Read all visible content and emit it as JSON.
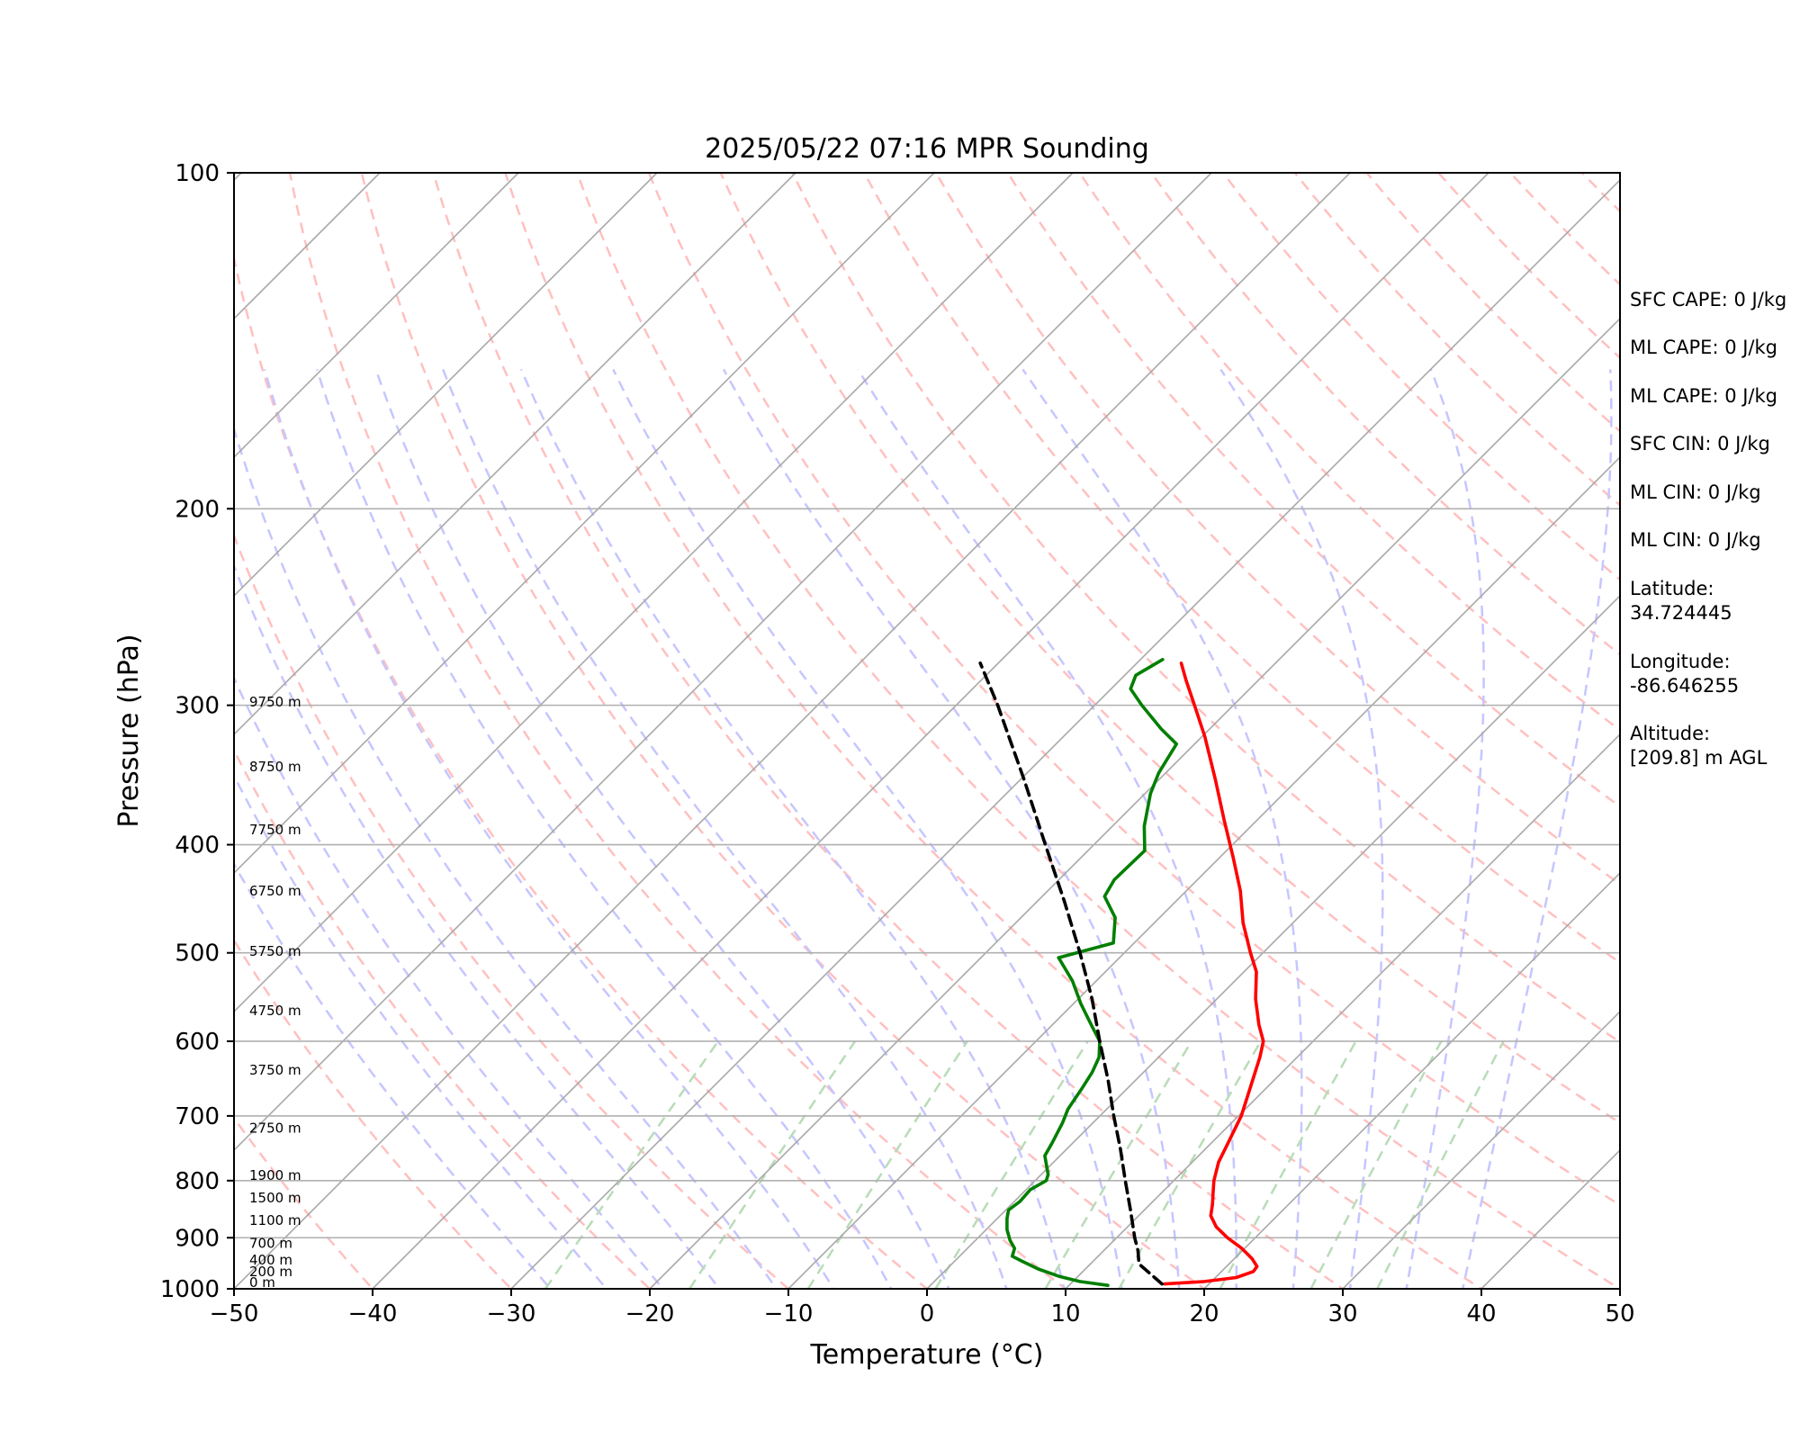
{
  "chart_data": {
    "type": "line",
    "title": "2025/05/22 07:16 MPR Sounding",
    "xlabel": "Temperature (°C)",
    "ylabel": "Pressure (hPa)",
    "xlim": [
      -50,
      50
    ],
    "ylim": [
      1000,
      100
    ],
    "y_scale": "log",
    "skew": true,
    "x_ticks": [
      "−50",
      "−40",
      "−30",
      "−20",
      "−10",
      "0",
      "10",
      "20",
      "30",
      "40",
      "50"
    ],
    "x_tick_values": [
      -50,
      -40,
      -30,
      -20,
      -10,
      0,
      10,
      20,
      30,
      40,
      50
    ],
    "y_ticks": [
      "100",
      "200",
      "300",
      "400",
      "500",
      "600",
      "700",
      "800",
      "900",
      "1000"
    ],
    "y_tick_values": [
      100,
      200,
      300,
      400,
      500,
      600,
      700,
      800,
      900,
      1000
    ],
    "grid": true,
    "height_labels": [
      {
        "text": "0 m",
        "p": 1000
      },
      {
        "text": "200 m",
        "p": 978
      },
      {
        "text": "400 m",
        "p": 955
      },
      {
        "text": "700 m",
        "p": 922
      },
      {
        "text": "1100 m",
        "p": 880
      },
      {
        "text": "1500 m",
        "p": 840
      },
      {
        "text": "1900 m",
        "p": 802
      },
      {
        "text": "2750 m",
        "p": 727
      },
      {
        "text": "3750 m",
        "p": 645
      },
      {
        "text": "4750 m",
        "p": 571
      },
      {
        "text": "5750 m",
        "p": 505
      },
      {
        "text": "6750 m",
        "p": 446
      },
      {
        "text": "7750 m",
        "p": 393
      },
      {
        "text": "8750 m",
        "p": 345
      },
      {
        "text": "9750 m",
        "p": 302
      }
    ],
    "series": [
      {
        "role": "temperature",
        "color": "#ff0000",
        "points": [
          {
            "p": 990,
            "t": 16.8
          },
          {
            "p": 985,
            "t": 19.5
          },
          {
            "p": 977,
            "t": 21.5
          },
          {
            "p": 965,
            "t": 22.3
          },
          {
            "p": 955,
            "t": 22.2
          },
          {
            "p": 940,
            "t": 21.3
          },
          {
            "p": 920,
            "t": 19.8
          },
          {
            "p": 900,
            "t": 18.0
          },
          {
            "p": 880,
            "t": 16.4
          },
          {
            "p": 860,
            "t": 15.2
          },
          {
            "p": 840,
            "t": 14.5
          },
          {
            "p": 820,
            "t": 13.7
          },
          {
            "p": 800,
            "t": 12.9
          },
          {
            "p": 770,
            "t": 11.9
          },
          {
            "p": 740,
            "t": 11.2
          },
          {
            "p": 700,
            "t": 10.2
          },
          {
            "p": 660,
            "t": 8.8
          },
          {
            "p": 620,
            "t": 7.3
          },
          {
            "p": 600,
            "t": 6.4
          },
          {
            "p": 580,
            "t": 4.9
          },
          {
            "p": 550,
            "t": 2.8
          },
          {
            "p": 520,
            "t": 0.9
          },
          {
            "p": 500,
            "t": -0.9
          },
          {
            "p": 470,
            "t": -3.6
          },
          {
            "p": 440,
            "t": -6.1
          },
          {
            "p": 410,
            "t": -9.1
          },
          {
            "p": 380,
            "t": -12.4
          },
          {
            "p": 350,
            "t": -15.9
          },
          {
            "p": 320,
            "t": -19.8
          },
          {
            "p": 300,
            "t": -22.8
          },
          {
            "p": 285,
            "t": -25.2
          },
          {
            "p": 275,
            "t": -26.8
          }
        ]
      },
      {
        "role": "dewpoint",
        "color": "#007f00",
        "points": [
          {
            "p": 993,
            "t": 12.8
          },
          {
            "p": 985,
            "t": 10.5
          },
          {
            "p": 975,
            "t": 8.7
          },
          {
            "p": 960,
            "t": 6.6
          },
          {
            "p": 945,
            "t": 4.9
          },
          {
            "p": 935,
            "t": 3.8
          },
          {
            "p": 920,
            "t": 3.4
          },
          {
            "p": 905,
            "t": 2.5
          },
          {
            "p": 885,
            "t": 1.5
          },
          {
            "p": 865,
            "t": 0.7
          },
          {
            "p": 850,
            "t": 0.2
          },
          {
            "p": 835,
            "t": 0.4
          },
          {
            "p": 815,
            "t": 0.3
          },
          {
            "p": 800,
            "t": 0.8
          },
          {
            "p": 790,
            "t": 0.5
          },
          {
            "p": 760,
            "t": -1.1
          },
          {
            "p": 740,
            "t": -1.5
          },
          {
            "p": 710,
            "t": -2.2
          },
          {
            "p": 690,
            "t": -2.8
          },
          {
            "p": 660,
            "t": -3.3
          },
          {
            "p": 640,
            "t": -3.7
          },
          {
            "p": 620,
            "t": -4.3
          },
          {
            "p": 600,
            "t": -5.4
          },
          {
            "p": 580,
            "t": -7.2
          },
          {
            "p": 555,
            "t": -9.5
          },
          {
            "p": 530,
            "t": -11.7
          },
          {
            "p": 505,
            "t": -14.4
          },
          {
            "p": 490,
            "t": -11.5
          },
          {
            "p": 465,
            "t": -13.2
          },
          {
            "p": 445,
            "t": -15.5
          },
          {
            "p": 430,
            "t": -16.0
          },
          {
            "p": 405,
            "t": -15.9
          },
          {
            "p": 385,
            "t": -17.7
          },
          {
            "p": 360,
            "t": -19.6
          },
          {
            "p": 345,
            "t": -20.5
          },
          {
            "p": 325,
            "t": -21.3
          },
          {
            "p": 315,
            "t": -23.5
          },
          {
            "p": 300,
            "t": -26.6
          },
          {
            "p": 290,
            "t": -28.6
          },
          {
            "p": 282,
            "t": -29.2
          },
          {
            "p": 273,
            "t": -28.4
          }
        ]
      },
      {
        "role": "parcel",
        "color": "#000000",
        "dashed": true,
        "points": [
          {
            "p": 990,
            "t": 16.6
          },
          {
            "p": 950,
            "t": 13.5
          },
          {
            "p": 925,
            "t": 12.5
          },
          {
            "p": 900,
            "t": 11.3
          },
          {
            "p": 850,
            "t": 9.0
          },
          {
            "p": 800,
            "t": 6.5
          },
          {
            "p": 750,
            "t": 3.9
          },
          {
            "p": 700,
            "t": 1.0
          },
          {
            "p": 650,
            "t": -2.0
          },
          {
            "p": 600,
            "t": -5.4
          },
          {
            "p": 550,
            "t": -9.0
          },
          {
            "p": 500,
            "t": -13.2
          },
          {
            "p": 450,
            "t": -18.0
          },
          {
            "p": 400,
            "t": -23.5
          },
          {
            "p": 350,
            "t": -29.7
          },
          {
            "p": 300,
            "t": -37.0
          },
          {
            "p": 275,
            "t": -41.3
          }
        ]
      }
    ],
    "background_lines": {
      "isotherm_color": "#a8a8a8",
      "dry_adiabat_color": "#ffc0c0",
      "moist_adiabat_color": "#c6c6ff",
      "mixing_ratio_color": "#b8dcb8"
    }
  },
  "stats": {
    "sfc_cape": "SFC CAPE: 0 J/kg",
    "ml_cape_1": "ML CAPE: 0 J/kg",
    "ml_cape_2": "ML CAPE: 0 J/kg",
    "sfc_cin": "SFC CIN: 0 J/kg",
    "ml_cin_1": "ML CIN: 0 J/kg",
    "ml_cin_2": "ML CIN: 0 J/kg",
    "latitude_label": "Latitude:",
    "latitude_value": "34.724445",
    "longitude_label": "Longitude:",
    "longitude_value": "-86.646255",
    "altitude_label": "Altitude:",
    "altitude_value": "[209.8] m AGL"
  }
}
